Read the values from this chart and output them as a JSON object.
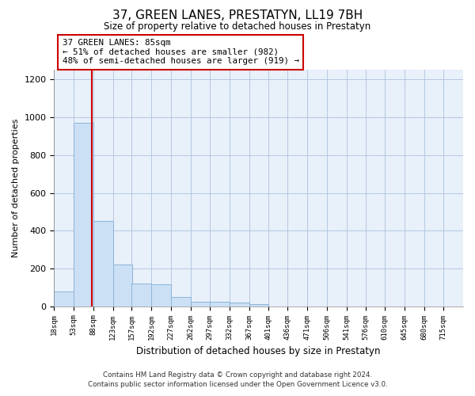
{
  "title": "37, GREEN LANES, PRESTATYN, LL19 7BH",
  "subtitle": "Size of property relative to detached houses in Prestatyn",
  "xlabel": "Distribution of detached houses by size in Prestatyn",
  "ylabel": "Number of detached properties",
  "bar_color": "#cce0f5",
  "bar_edge_color": "#8ab4d8",
  "background_color": "#ffffff",
  "axes_bg_color": "#e8f0fa",
  "grid_color": "#b0c4de",
  "annotation_line_color": "#cc0000",
  "annotation_box_edgecolor": "#cc0000",
  "annotation_text": "37 GREEN LANES: 85sqm\n← 51% of detached houses are smaller (982)\n48% of semi-detached houses are larger (919) →",
  "property_size_sqm": 85,
  "bin_labels": [
    "18sqm",
    "53sqm",
    "88sqm",
    "123sqm",
    "157sqm",
    "192sqm",
    "227sqm",
    "262sqm",
    "297sqm",
    "332sqm",
    "367sqm",
    "401sqm",
    "436sqm",
    "471sqm",
    "506sqm",
    "541sqm",
    "576sqm",
    "610sqm",
    "645sqm",
    "680sqm",
    "715sqm"
  ],
  "bin_edges": [
    18,
    53,
    88,
    123,
    157,
    192,
    227,
    262,
    297,
    332,
    367,
    401,
    436,
    471,
    506,
    541,
    576,
    610,
    645,
    680,
    715
  ],
  "bar_heights": [
    80,
    970,
    450,
    220,
    120,
    115,
    48,
    25,
    22,
    20,
    12,
    0,
    0,
    0,
    0,
    0,
    0,
    0,
    0,
    0,
    0
  ],
  "ylim": [
    0,
    1250
  ],
  "yticks": [
    0,
    200,
    400,
    600,
    800,
    1000,
    1200
  ],
  "footer_line1": "Contains HM Land Registry data © Crown copyright and database right 2024.",
  "footer_line2": "Contains public sector information licensed under the Open Government Licence v3.0.",
  "figsize": [
    6.0,
    5.0
  ],
  "dpi": 100
}
